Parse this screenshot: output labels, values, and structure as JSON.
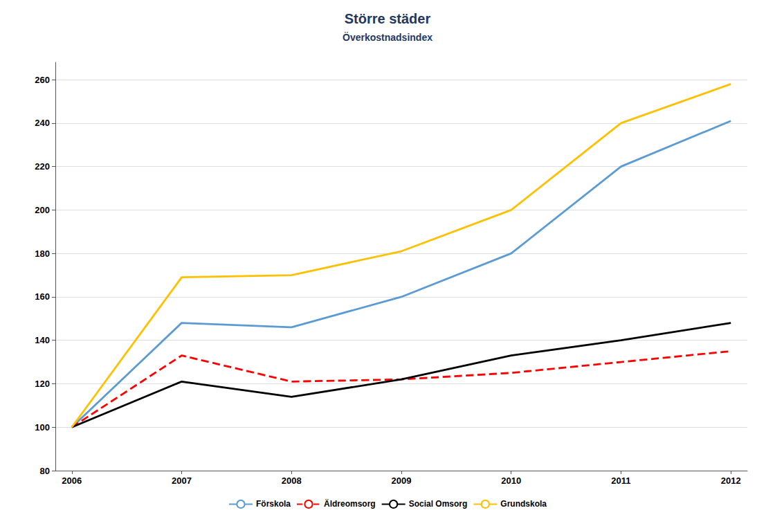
{
  "chart_data": {
    "type": "line",
    "title": "Större städer",
    "subtitle": "Överkostnadsindex",
    "x": [
      2006,
      2007,
      2008,
      2009,
      2010,
      2011,
      2012
    ],
    "series": [
      {
        "name": "Förskola",
        "color": "#5B9BD5",
        "line_style": "solid",
        "values": [
          100,
          148,
          146,
          160,
          180,
          220,
          241
        ]
      },
      {
        "name": "Äldreomsorg",
        "color": "#FF0000",
        "line_style": "dashed",
        "values": [
          100,
          133,
          121,
          122,
          125,
          130,
          135
        ]
      },
      {
        "name": "Social Omsorg",
        "color": "#000000",
        "line_style": "solid",
        "values": [
          100,
          121,
          114,
          122,
          133,
          140,
          148
        ]
      },
      {
        "name": "Grundskola",
        "color": "#FFC000",
        "line_style": "solid",
        "values": [
          100,
          169,
          170,
          181,
          200,
          240,
          258
        ]
      }
    ],
    "xlim": [
      2005.85,
      2012.15
    ],
    "xticks": [
      2006,
      2007,
      2008,
      2009,
      2010,
      2011,
      2012
    ],
    "ylim": [
      80,
      268
    ],
    "yticks": [
      80,
      100,
      120,
      140,
      160,
      180,
      200,
      220,
      240,
      260
    ],
    "grid": true,
    "legend": "bottom"
  }
}
